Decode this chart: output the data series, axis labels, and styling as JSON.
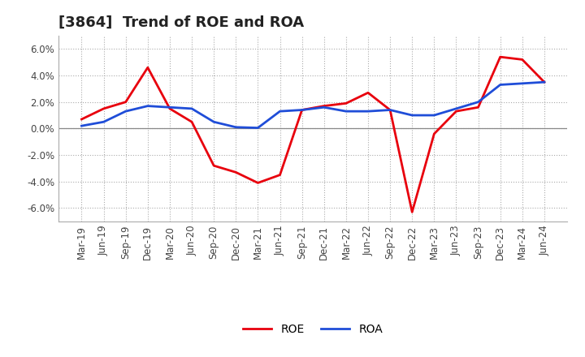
{
  "title": "[3864]  Trend of ROE and ROA",
  "labels": [
    "Mar-19",
    "Jun-19",
    "Sep-19",
    "Dec-19",
    "Mar-20",
    "Jun-20",
    "Sep-20",
    "Dec-20",
    "Mar-21",
    "Jun-21",
    "Sep-21",
    "Dec-21",
    "Mar-22",
    "Jun-22",
    "Sep-22",
    "Dec-22",
    "Mar-23",
    "Jun-23",
    "Sep-23",
    "Dec-23",
    "Mar-24",
    "Jun-24"
  ],
  "ROE": [
    0.7,
    1.5,
    2.0,
    4.6,
    1.5,
    0.5,
    -2.8,
    -3.3,
    -4.1,
    -3.5,
    1.4,
    1.7,
    1.9,
    2.7,
    1.4,
    -6.3,
    -0.4,
    1.3,
    1.6,
    5.4,
    5.2,
    3.5
  ],
  "ROA": [
    0.2,
    0.5,
    1.3,
    1.7,
    1.6,
    1.5,
    0.5,
    0.1,
    0.05,
    1.3,
    1.4,
    1.6,
    1.3,
    1.3,
    1.4,
    1.0,
    1.0,
    1.5,
    2.0,
    3.3,
    3.4,
    3.5
  ],
  "roe_color": "#e8000d",
  "roa_color": "#1f4dd8",
  "ylim": [
    -7.0,
    7.0
  ],
  "yticks": [
    -6.0,
    -4.0,
    -2.0,
    0.0,
    2.0,
    4.0,
    6.0
  ],
  "ytick_labels": [
    "-6.0%",
    "-4.0%",
    "-2.0%",
    "0.0%",
    "2.0%",
    "4.0%",
    "6.0%"
  ],
  "bg_color": "#ffffff",
  "plot_bg_color": "#ffffff",
  "grid_color": "#aaaaaa",
  "zero_line_color": "#888888",
  "linewidth": 2.0,
  "title_fontsize": 13,
  "tick_fontsize": 8.5,
  "legend_fontsize": 10
}
